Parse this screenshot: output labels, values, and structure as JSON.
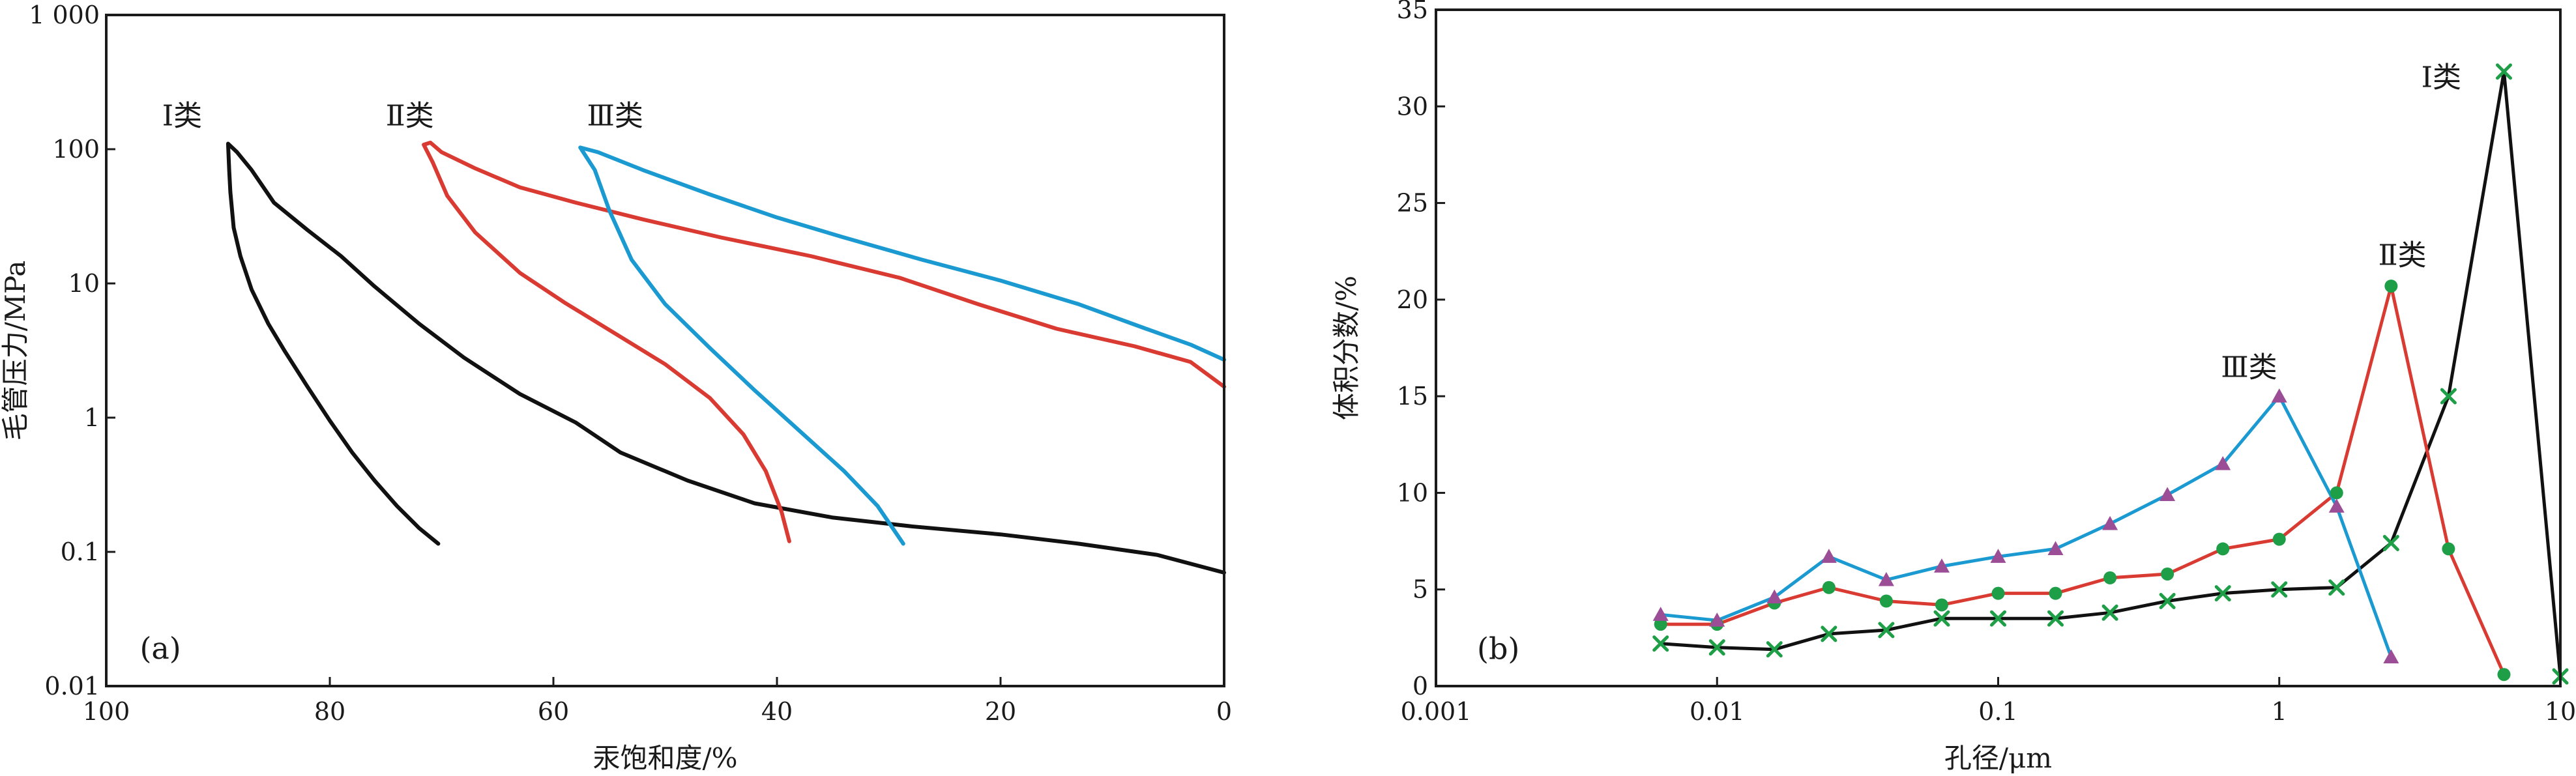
{
  "colors": {
    "class_1": "#111111",
    "class_2": "#d93a32",
    "class_3": "#1a9ad0",
    "marker_green": "#1e9e46",
    "marker_purple": "#9b4d96"
  },
  "chart_data": [
    {
      "type": "line",
      "panel_label": "(a)",
      "xlabel": "汞饱和度/%",
      "ylabel": "毛管压力/MPa",
      "x_reversed": true,
      "xlim": [
        100,
        0
      ],
      "y_scale": "log",
      "ylim": [
        0.01,
        1000
      ],
      "x_ticks": [
        100,
        80,
        60,
        40,
        20,
        0
      ],
      "x_tick_labels": [
        "100",
        "80",
        "60",
        "40",
        "20",
        "0"
      ],
      "y_ticks": [
        0.01,
        0.1,
        1,
        10,
        100,
        1000
      ],
      "y_tick_labels": [
        "0.01",
        "0.1",
        "1",
        "10",
        "100",
        "1 000"
      ],
      "series": [
        {
          "name": "Ⅰ类",
          "color_key": "class_1",
          "points": [
            [
              70.3,
              0.115
            ],
            [
              72,
              0.15
            ],
            [
              74,
              0.22
            ],
            [
              76,
              0.34
            ],
            [
              78,
              0.55
            ],
            [
              80,
              0.95
            ],
            [
              82,
              1.7
            ],
            [
              84,
              3.1
            ],
            [
              85.5,
              5.0
            ],
            [
              87,
              9.0
            ],
            [
              88,
              16.0
            ],
            [
              88.6,
              26.0
            ],
            [
              88.9,
              48.0
            ],
            [
              89,
              70.0
            ],
            [
              89.1,
              110.0
            ],
            [
              88.3,
              95.0
            ],
            [
              87,
              70.0
            ],
            [
              85,
              40.0
            ],
            [
              82,
              25.0
            ],
            [
              79,
              16.0
            ],
            [
              76,
              9.5
            ],
            [
              72,
              5.0
            ],
            [
              68,
              2.8
            ],
            [
              63,
              1.5
            ],
            [
              58,
              0.92
            ],
            [
              54,
              0.55
            ],
            [
              48,
              0.34
            ],
            [
              42,
              0.23
            ],
            [
              35,
              0.18
            ],
            [
              28,
              0.155
            ],
            [
              20,
              0.135
            ],
            [
              13,
              0.115
            ],
            [
              6,
              0.095
            ],
            [
              0,
              0.07
            ]
          ]
        },
        {
          "name": "Ⅱ类",
          "color_key": "class_2",
          "points": [
            [
              38.9,
              0.12
            ],
            [
              39.6,
              0.2
            ],
            [
              41,
              0.4
            ],
            [
              43,
              0.75
            ],
            [
              46,
              1.4
            ],
            [
              50,
              2.5
            ],
            [
              55,
              4.5
            ],
            [
              59,
              7.2
            ],
            [
              63,
              12.0
            ],
            [
              67,
              24.0
            ],
            [
              69.5,
              45.0
            ],
            [
              70.8,
              80.0
            ],
            [
              71.6,
              108.0
            ],
            [
              71,
              112.0
            ],
            [
              70,
              95.0
            ],
            [
              67,
              72.0
            ],
            [
              63,
              52.0
            ],
            [
              58,
              40.0
            ],
            [
              52,
              30.0
            ],
            [
              45,
              22.0
            ],
            [
              37,
              16.0
            ],
            [
              29,
              11.0
            ],
            [
              22,
              7.0
            ],
            [
              15,
              4.6
            ],
            [
              8,
              3.4
            ],
            [
              3,
              2.6
            ],
            [
              0,
              1.7
            ]
          ]
        },
        {
          "name": "Ⅲ类",
          "color_key": "class_3",
          "points": [
            [
              28.7,
              0.115
            ],
            [
              31,
              0.22
            ],
            [
              34,
              0.4
            ],
            [
              38,
              0.8
            ],
            [
              42,
              1.6
            ],
            [
              46,
              3.3
            ],
            [
              50,
              7.0
            ],
            [
              53,
              15.0
            ],
            [
              55,
              35.0
            ],
            [
              56.3,
              70.0
            ],
            [
              57.6,
              103.0
            ],
            [
              56,
              95.0
            ],
            [
              52,
              70.0
            ],
            [
              46,
              46.0
            ],
            [
              40,
              31.0
            ],
            [
              34,
              22.0
            ],
            [
              27,
              15.0
            ],
            [
              20,
              10.5
            ],
            [
              13,
              7.0
            ],
            [
              7,
              4.6
            ],
            [
              3,
              3.5
            ],
            [
              0,
              2.7
            ]
          ]
        }
      ]
    },
    {
      "type": "line",
      "panel_label": "(b)",
      "xlabel": "孔径/μm",
      "ylabel": "体积分数/%",
      "x_scale": "log",
      "xlim": [
        0.001,
        10
      ],
      "ylim": [
        0,
        35
      ],
      "x_ticks": [
        0.001,
        0.01,
        0.1,
        1,
        10
      ],
      "x_tick_labels": [
        "0.001",
        "0.01",
        "0.1",
        "1",
        "10"
      ],
      "y_ticks": [
        0,
        5,
        10,
        15,
        20,
        25,
        30,
        35
      ],
      "y_tick_labels": [
        "0",
        "5",
        "10",
        "15",
        "20",
        "25",
        "30",
        "35"
      ],
      "series": [
        {
          "name": "Ⅰ类",
          "color_key": "class_1",
          "marker": "x",
          "marker_color_key": "marker_green",
          "x": [
            0.0063,
            0.01,
            0.016,
            0.025,
            0.04,
            0.063,
            0.1,
            0.16,
            0.25,
            0.4,
            0.63,
            1.0,
            1.6,
            2.5,
            4.0,
            6.3,
            10.0
          ],
          "y": [
            2.2,
            2.0,
            1.9,
            2.7,
            2.9,
            3.5,
            3.5,
            3.5,
            3.8,
            4.4,
            4.8,
            5.0,
            5.1,
            7.4,
            15.0,
            31.8,
            0.5
          ]
        },
        {
          "name": "Ⅱ类",
          "color_key": "class_2",
          "marker": "circle",
          "marker_color_key": "marker_green",
          "x": [
            0.0063,
            0.01,
            0.016,
            0.025,
            0.04,
            0.063,
            0.1,
            0.16,
            0.25,
            0.4,
            0.63,
            1.0,
            1.6,
            2.5,
            4.0,
            6.3
          ],
          "y": [
            3.2,
            3.2,
            4.3,
            5.1,
            4.4,
            4.2,
            4.8,
            4.8,
            5.6,
            5.8,
            7.1,
            7.6,
            10.0,
            20.7,
            7.1,
            0.6
          ]
        },
        {
          "name": "Ⅲ类",
          "color_key": "class_3",
          "marker": "triangle",
          "marker_color_key": "marker_purple",
          "x": [
            0.0063,
            0.01,
            0.016,
            0.025,
            0.04,
            0.063,
            0.1,
            0.16,
            0.25,
            0.4,
            0.63,
            1.0,
            1.6,
            2.5
          ],
          "y": [
            3.7,
            3.4,
            4.6,
            6.7,
            5.5,
            6.2,
            6.7,
            7.1,
            8.4,
            9.9,
            11.5,
            15.0,
            9.3,
            1.5
          ]
        }
      ]
    }
  ]
}
